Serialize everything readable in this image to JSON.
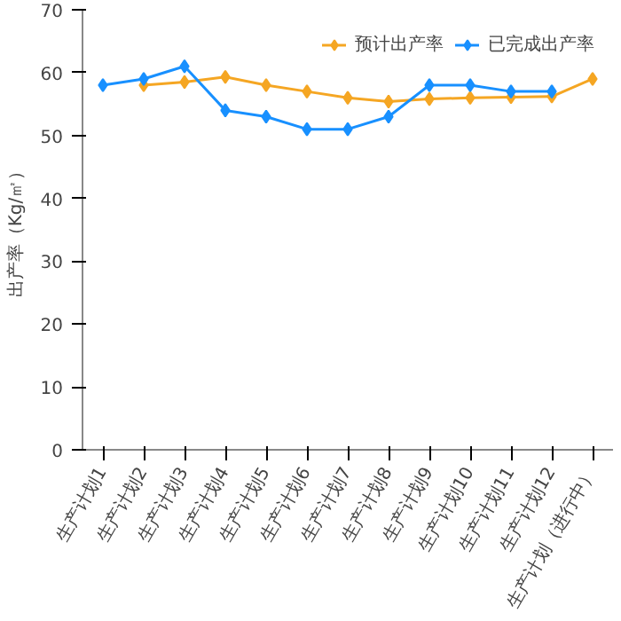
{
  "chart_data": {
    "type": "line",
    "ylabel": "出产率（Kg/㎡）",
    "categories": [
      "生产计划1",
      "生产计划2",
      "生产计划3",
      "生产计划4",
      "生产计划5",
      "生产计划6",
      "生产计划7",
      "生产计划8",
      "生产计划9",
      "生产计划10",
      "生产计划11",
      "生产计划12",
      "生产计划（进行中）"
    ],
    "series": [
      {
        "name": "预计出产率",
        "color": "#f5a623",
        "values": [
          null,
          58,
          58.5,
          59.3,
          58,
          57,
          56,
          55.4,
          55.8,
          56,
          56.1,
          56.2,
          59
        ]
      },
      {
        "name": "已完成出产率",
        "color": "#1890ff",
        "values": [
          58,
          59,
          61,
          54,
          53,
          51,
          51,
          53,
          58,
          58,
          57,
          57,
          null
        ]
      }
    ],
    "ylim": [
      0,
      70
    ],
    "yticks": [
      0,
      10,
      20,
      30,
      40,
      50,
      60,
      70
    ],
    "grid": false,
    "legend": "top right",
    "marker": "diamond",
    "line_style": "solid"
  }
}
